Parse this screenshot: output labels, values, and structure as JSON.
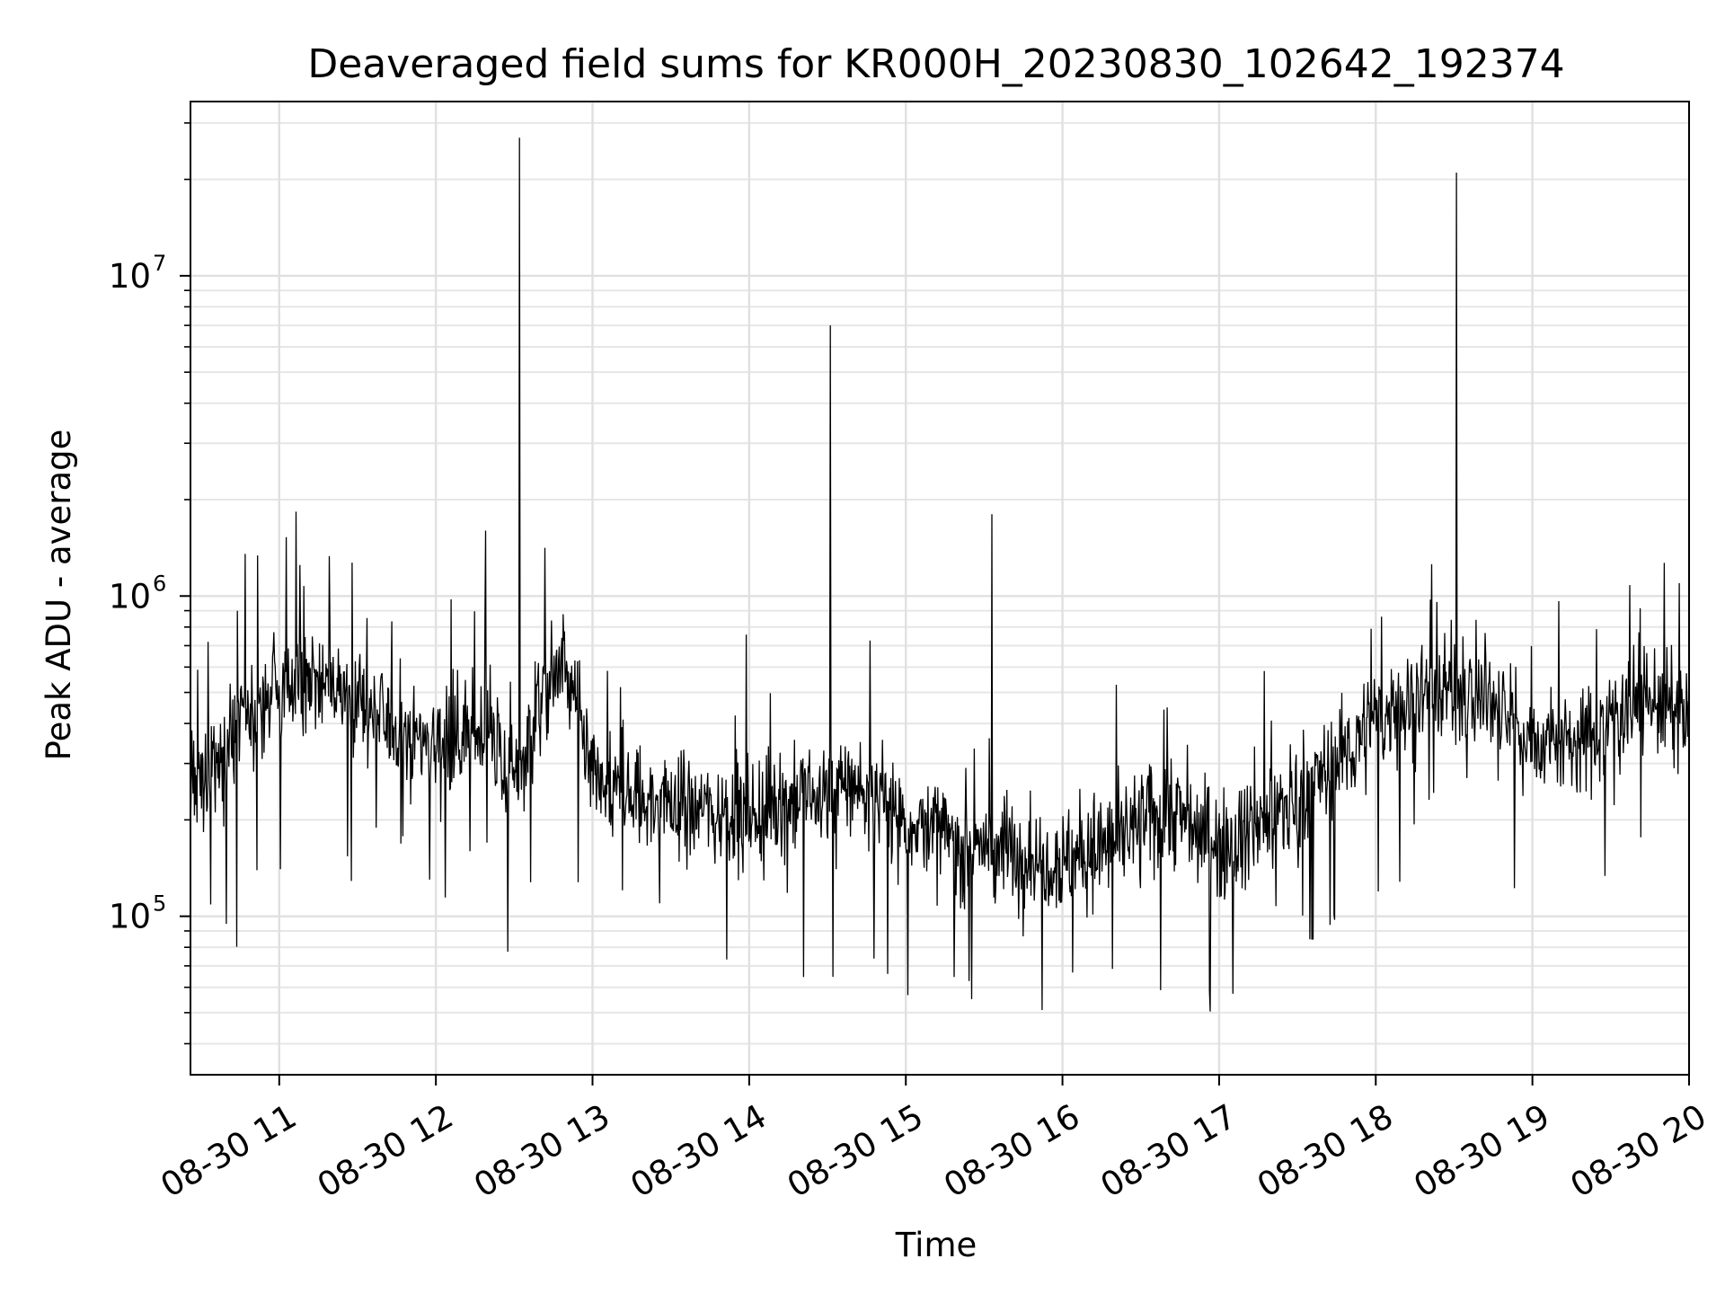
{
  "chart_data": {
    "type": "line",
    "title": "Deaveraged field sums for KR000H_20230830_102642_192374",
    "xlabel": "Time",
    "ylabel": "Peak ADU - average",
    "yscale": "log",
    "xlim": [
      "2023-08-30 10:26",
      "2023-08-30 20:00"
    ],
    "ylim": [
      32000,
      35000000
    ],
    "grid": true,
    "line_color": "#000000",
    "x_ticks": [
      {
        "hour": 11,
        "label": "08-30 11"
      },
      {
        "hour": 12,
        "label": "08-30 12"
      },
      {
        "hour": 13,
        "label": "08-30 13"
      },
      {
        "hour": 14,
        "label": "08-30 14"
      },
      {
        "hour": 15,
        "label": "08-30 15"
      },
      {
        "hour": 16,
        "label": "08-30 16"
      },
      {
        "hour": 17,
        "label": "08-30 17"
      },
      {
        "hour": 18,
        "label": "08-30 18"
      },
      {
        "hour": 19,
        "label": "08-30 19"
      },
      {
        "hour": 20,
        "label": "08-30 20"
      }
    ],
    "y_ticks": [
      {
        "value": 100000,
        "base": "10",
        "exp": "5"
      },
      {
        "value": 1000000,
        "base": "10",
        "exp": "6"
      },
      {
        "value": 10000000,
        "base": "10",
        "exp": "7"
      }
    ],
    "series": [
      {
        "x": [
          "10:26",
          "10:45",
          "11:00",
          "11:20",
          "11:40",
          "12:00",
          "12:20",
          "12:30",
          "12:40",
          "12:50",
          "13:00",
          "13:20",
          "13:40",
          "14:00",
          "14:20",
          "14:40",
          "15:00",
          "15:20",
          "15:40",
          "16:00",
          "16:20",
          "16:40",
          "17:00",
          "17:20",
          "17:40",
          "18:00",
          "18:20",
          "18:40",
          "19:00",
          "19:20",
          "19:40",
          "20:00"
        ],
        "y": [
          220000,
          400000,
          500000,
          550000,
          400000,
          350000,
          380000,
          250000,
          500000,
          600000,
          250000,
          230000,
          220000,
          210000,
          230000,
          260000,
          200000,
          170000,
          160000,
          150000,
          170000,
          220000,
          170000,
          200000,
          280000,
          400000,
          520000,
          500000,
          350000,
          350000,
          500000,
          400000
        ]
      }
    ],
    "spikes": [
      {
        "x": "12:32",
        "y": 27000000
      },
      {
        "x": "14:31",
        "y": 7000000
      },
      {
        "x": "18:31",
        "y": 21000000
      },
      {
        "x": "15:33",
        "y": 1800000
      },
      {
        "x": "11:08",
        "y": 1250000
      },
      {
        "x": "12:19",
        "y": 1600000
      }
    ]
  }
}
